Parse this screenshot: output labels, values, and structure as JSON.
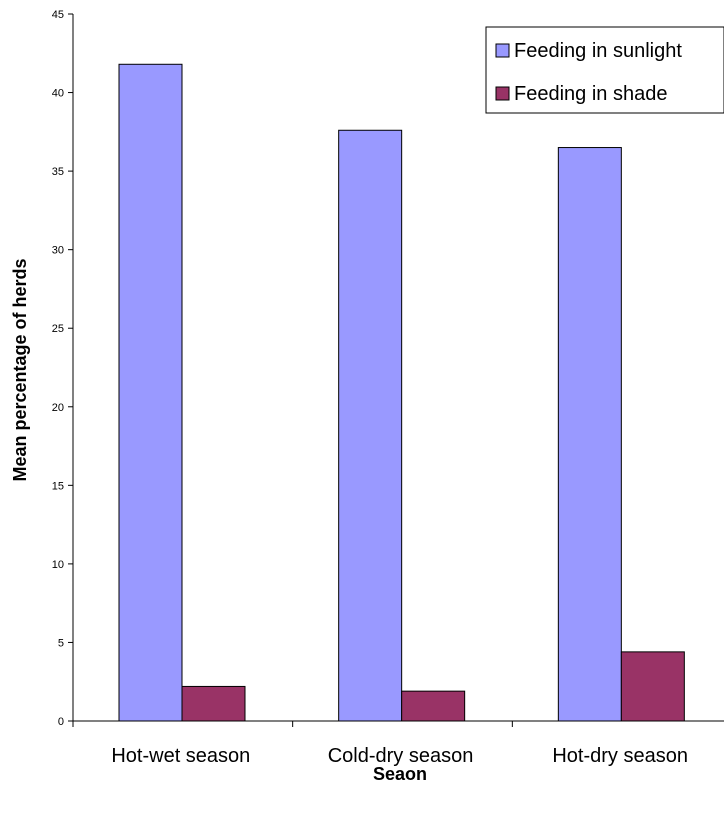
{
  "chart_data": {
    "type": "bar",
    "title": "",
    "xlabel": "Seaon",
    "ylabel": "Mean percentage of herds",
    "categories": [
      "Hot-wet season",
      "Cold-dry season",
      "Hot-dry season"
    ],
    "series": [
      {
        "name": "Feeding in sunlight",
        "values": [
          41.8,
          37.6,
          36.5
        ],
        "color": "#9999ff"
      },
      {
        "name": "Feeding in shade",
        "values": [
          2.2,
          1.9,
          4.4
        ],
        "color": "#993366"
      }
    ],
    "ylim": [
      0,
      45
    ],
    "yticks": [
      "0",
      "5",
      "10",
      "15",
      "20",
      "25",
      "30",
      "35",
      "40",
      "45"
    ],
    "grid": false,
    "legend_position": "top-right"
  }
}
